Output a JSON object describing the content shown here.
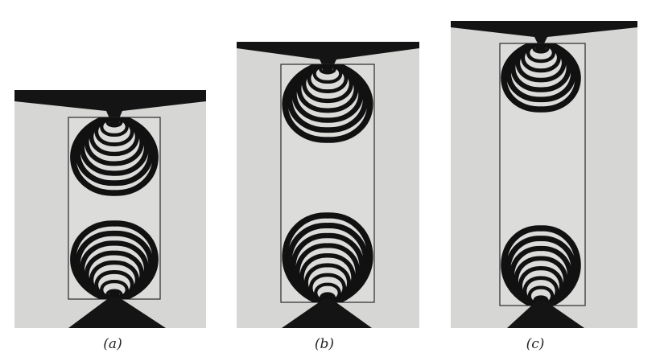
{
  "figure": {
    "panels": [
      {
        "id": "a",
        "label": "(a)"
      },
      {
        "id": "b",
        "label": "(b)"
      },
      {
        "id": "c",
        "label": "(c)"
      }
    ],
    "colors": {
      "background": "#ffffff",
      "plate": "#d6d6d4",
      "fringe": "#111111",
      "anvil": "#141414"
    }
  }
}
